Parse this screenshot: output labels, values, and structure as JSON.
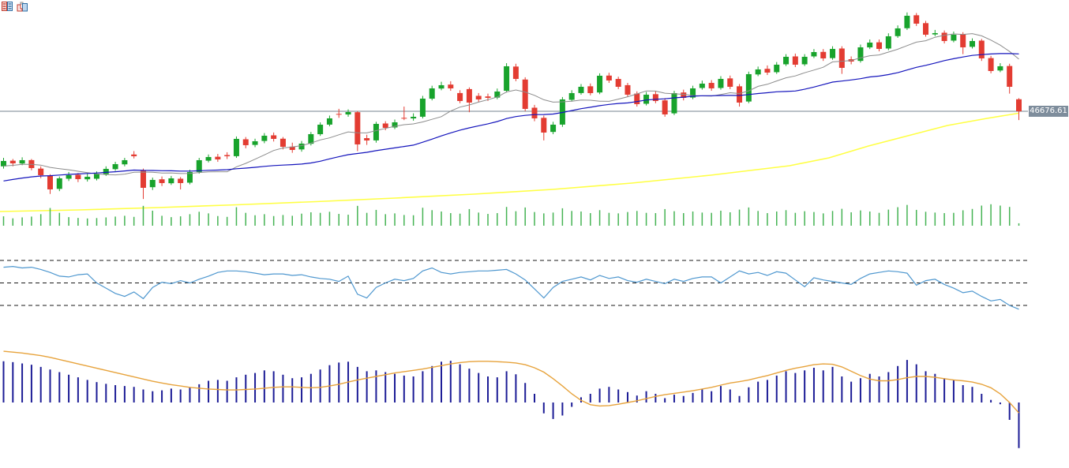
{
  "toolbar": {
    "icons": [
      {
        "name": "quote-list-icon"
      },
      {
        "name": "kline-chart-icon"
      }
    ]
  },
  "price_label": {
    "value": "46676.61",
    "bg": "#7e8d9c",
    "text_color": "#ffffff"
  },
  "chart_data": {
    "type": "candlestick",
    "panels": [
      "price",
      "volume",
      "oscillator",
      "macd"
    ],
    "last_price": 46676.61,
    "price_line_level": 46676.61,
    "colors": {
      "up": "#18a32c",
      "down": "#e33c32",
      "ma_short": "#8c8c8c",
      "ma_mid": "#1414bc",
      "ma_long": "#ffff44",
      "price_line": "#75838f",
      "volume": "#45b353",
      "oscillator": "#4e97cf",
      "oscillator_level": "#1a1a1a",
      "macd_bar": "#1c1c96",
      "macd_signal": "#e7a33c"
    },
    "ma_short_period": 10,
    "ma_mid_period": 30,
    "prior_closes": [
      44950,
      44985,
      45020,
      45055,
      45090,
      45125,
      45160,
      45195,
      45230,
      45265,
      45300,
      45335,
      45370,
      45405,
      45435,
      45465,
      45495,
      45525,
      45550,
      45575,
      45600,
      45620,
      45640,
      45660,
      45680,
      45700,
      45715,
      45730,
      45745,
      45760
    ],
    "candles": [
      [
        45700,
        45850,
        45660,
        45795
      ],
      [
        45800,
        45830,
        45700,
        45753
      ],
      [
        45750,
        45860,
        45720,
        45809
      ],
      [
        45810,
        45830,
        45630,
        45669
      ],
      [
        45660,
        45700,
        45490,
        45543
      ],
      [
        45530,
        45560,
        45210,
        45291
      ],
      [
        45300,
        45520,
        45260,
        45487
      ],
      [
        45480,
        45600,
        45440,
        45543
      ],
      [
        45550,
        45580,
        45420,
        45473
      ],
      [
        45470,
        45570,
        45430,
        45515
      ],
      [
        45480,
        45610,
        45450,
        45571
      ],
      [
        45560,
        45700,
        45530,
        45655
      ],
      [
        45650,
        45780,
        45620,
        45739
      ],
      [
        45735,
        45850,
        45700,
        45809
      ],
      [
        45910,
        45970,
        45840,
        45879
      ],
      [
        45620,
        45660,
        45120,
        45319
      ],
      [
        45330,
        45500,
        45280,
        45459
      ],
      [
        45470,
        45520,
        45350,
        45403
      ],
      [
        45400,
        45530,
        45370,
        45487
      ],
      [
        45480,
        45510,
        45290,
        45403
      ],
      [
        45410,
        45640,
        45380,
        45599
      ],
      [
        45600,
        45850,
        45570,
        45809
      ],
      [
        45800,
        45910,
        45770,
        45865
      ],
      [
        45870,
        45920,
        45780,
        45823
      ],
      [
        45900,
        45950,
        45830,
        45879
      ],
      [
        45880,
        46230,
        45850,
        46187
      ],
      [
        46180,
        46220,
        46020,
        46075
      ],
      [
        46080,
        46190,
        46040,
        46145
      ],
      [
        46150,
        46290,
        46110,
        46243
      ],
      [
        46250,
        46300,
        46140,
        46187
      ],
      [
        46190,
        46220,
        46000,
        46047
      ],
      [
        46050,
        46120,
        45940,
        45991
      ],
      [
        46000,
        46150,
        45960,
        46103
      ],
      [
        46100,
        46310,
        46070,
        46271
      ],
      [
        46270,
        46480,
        46240,
        46439
      ],
      [
        46440,
        46600,
        46410,
        46551
      ],
      [
        46630,
        46720,
        46560,
        46621
      ],
      [
        46620,
        46710,
        46580,
        46663
      ],
      [
        46660,
        46680,
        45970,
        46089
      ],
      [
        46200,
        46260,
        46080,
        46159
      ],
      [
        46160,
        46490,
        46120,
        46453
      ],
      [
        46460,
        46500,
        46340,
        46383
      ],
      [
        46390,
        46530,
        46360,
        46481
      ],
      [
        46560,
        46760,
        46520,
        46551
      ],
      [
        46550,
        46640,
        46510,
        46579
      ],
      [
        46580,
        46950,
        46550,
        46901
      ],
      [
        46900,
        47130,
        46870,
        47083
      ],
      [
        47080,
        47200,
        47050,
        47139
      ],
      [
        47150,
        47210,
        47040,
        47083
      ],
      [
        47000,
        47050,
        46820,
        46859
      ],
      [
        47070,
        47100,
        46660,
        46831
      ],
      [
        46950,
        47000,
        46840,
        46887
      ],
      [
        46940,
        46990,
        46860,
        46915
      ],
      [
        46920,
        47080,
        46890,
        47027
      ],
      [
        47040,
        47530,
        47010,
        47475
      ],
      [
        47470,
        47520,
        47210,
        47251
      ],
      [
        47240,
        47280,
        46680,
        46719
      ],
      [
        46740,
        46790,
        46500,
        46551
      ],
      [
        46560,
        46600,
        46160,
        46299
      ],
      [
        46310,
        46490,
        46270,
        46439
      ],
      [
        46440,
        46930,
        46400,
        46887
      ],
      [
        46880,
        47050,
        46850,
        46999
      ],
      [
        47000,
        47160,
        46970,
        47111
      ],
      [
        47120,
        47170,
        46960,
        46999
      ],
      [
        47010,
        47350,
        46980,
        47307
      ],
      [
        47310,
        47360,
        47180,
        47223
      ],
      [
        47250,
        47290,
        47070,
        47111
      ],
      [
        47140,
        47180,
        46930,
        46971
      ],
      [
        46990,
        47030,
        46760,
        46803
      ],
      [
        46810,
        47020,
        46780,
        46971
      ],
      [
        46980,
        47030,
        46820,
        46859
      ],
      [
        46870,
        46910,
        46580,
        46621
      ],
      [
        46640,
        47040,
        46610,
        46999
      ],
      [
        47010,
        47060,
        46870,
        46915
      ],
      [
        46920,
        47130,
        46890,
        47083
      ],
      [
        47090,
        47220,
        47060,
        47167
      ],
      [
        47180,
        47230,
        47040,
        47083
      ],
      [
        47090,
        47300,
        47060,
        47251
      ],
      [
        47260,
        47310,
        47070,
        47111
      ],
      [
        47120,
        47160,
        46760,
        46831
      ],
      [
        46850,
        47380,
        46820,
        47335
      ],
      [
        47330,
        47470,
        47300,
        47419
      ],
      [
        47430,
        47490,
        47320,
        47363
      ],
      [
        47370,
        47550,
        47340,
        47503
      ],
      [
        47510,
        47690,
        47480,
        47643
      ],
      [
        47650,
        47700,
        47460,
        47503
      ],
      [
        47510,
        47690,
        47480,
        47643
      ],
      [
        47650,
        47780,
        47620,
        47727
      ],
      [
        47730,
        47780,
        47570,
        47615
      ],
      [
        47620,
        47830,
        47590,
        47783
      ],
      [
        47790,
        47830,
        47340,
        47447
      ],
      [
        47600,
        47650,
        47510,
        47559
      ],
      [
        47570,
        47860,
        47540,
        47811
      ],
      [
        47810,
        47950,
        47780,
        47895
      ],
      [
        47900,
        47950,
        47740,
        47783
      ],
      [
        47790,
        48060,
        47760,
        48007
      ],
      [
        48010,
        48200,
        47980,
        48147
      ],
      [
        48150,
        48430,
        48120,
        48371
      ],
      [
        48380,
        48420,
        48190,
        48231
      ],
      [
        48240,
        48280,
        48000,
        48035
      ],
      [
        48040,
        48120,
        48010,
        48063
      ],
      [
        48070,
        48110,
        47880,
        47923
      ],
      [
        47930,
        48090,
        47900,
        48035
      ],
      [
        48040,
        48080,
        47690,
        47811
      ],
      [
        47820,
        47970,
        47790,
        47923
      ],
      [
        47930,
        47960,
        47570,
        47615
      ],
      [
        47620,
        47660,
        47350,
        47391
      ],
      [
        47400,
        47530,
        47370,
        47475
      ],
      [
        47480,
        47520,
        46990,
        47111
      ],
      [
        46890,
        46910,
        46520,
        46676.61
      ]
    ],
    "ma_long_line": [
      [
        0,
        44898
      ],
      [
        100,
        44926
      ],
      [
        200,
        44969
      ],
      [
        300,
        45018
      ],
      [
        400,
        45074
      ],
      [
        500,
        45137
      ],
      [
        600,
        45207
      ],
      [
        700,
        45291
      ],
      [
        800,
        45403
      ],
      [
        900,
        45543
      ],
      [
        1000,
        45711
      ],
      [
        1050,
        45850
      ],
      [
        1100,
        46060
      ],
      [
        1150,
        46243
      ],
      [
        1200,
        46425
      ],
      [
        1250,
        46551
      ],
      [
        1290,
        46642
      ]
    ],
    "volumes": [
      70,
      55,
      62,
      68,
      86,
      132,
      96,
      64,
      58,
      54,
      57,
      62,
      68,
      74,
      66,
      148,
      112,
      74,
      64,
      70,
      86,
      104,
      92,
      72,
      66,
      138,
      96,
      78,
      86,
      72,
      80,
      74,
      90,
      100,
      96,
      104,
      88,
      82,
      148,
      96,
      118,
      86,
      92,
      80,
      78,
      134,
      116,
      106,
      94,
      90,
      124,
      98,
      88,
      94,
      140,
      108,
      136,
      102,
      92,
      98,
      130,
      110,
      106,
      94,
      116,
      96,
      92,
      102,
      110,
      96,
      94,
      124,
      108,
      94,
      106,
      98,
      96,
      112,
      100,
      120,
      136,
      110,
      94,
      106,
      116,
      96,
      108,
      102,
      92,
      110,
      126,
      100,
      114,
      106,
      96,
      120,
      138,
      155,
      118,
      104,
      98,
      94,
      96,
      115,
      125,
      150,
      160,
      150,
      140,
      18
    ],
    "oscillator": {
      "levels": [
        80,
        50,
        20
      ],
      "values": [
        71,
        72,
        70,
        71,
        68,
        64,
        59,
        58,
        61,
        62,
        50,
        43,
        36,
        32,
        38,
        29,
        44,
        51,
        49,
        53,
        50,
        55,
        59,
        64,
        66,
        66,
        65,
        63,
        61,
        62,
        62,
        60,
        61,
        58,
        56,
        55,
        52,
        59,
        35,
        30,
        44,
        50,
        55,
        53,
        56,
        66,
        70,
        64,
        62,
        64,
        65,
        66,
        66,
        67,
        68,
        62,
        54,
        42,
        30,
        44,
        52,
        55,
        58,
        54,
        60,
        56,
        58,
        53,
        51,
        55,
        52,
        49,
        55,
        52,
        56,
        58,
        58,
        50,
        58,
        66,
        62,
        64,
        60,
        65,
        63,
        54,
        45,
        57,
        54,
        52,
        50,
        48,
        56,
        62,
        64,
        66,
        65,
        63,
        47,
        53,
        55,
        48,
        43,
        37,
        39,
        32,
        26,
        28,
        20,
        15
      ]
    },
    "macd": {
      "histogram": [
        95,
        93,
        90,
        87,
        82,
        76,
        70,
        64,
        58,
        52,
        47,
        43,
        40,
        38,
        36,
        30,
        26,
        28,
        32,
        30,
        35,
        42,
        50,
        52,
        50,
        58,
        64,
        68,
        74,
        72,
        64,
        56,
        58,
        66,
        76,
        86,
        92,
        94,
        82,
        72,
        74,
        70,
        66,
        62,
        60,
        72,
        84,
        94,
        96,
        88,
        78,
        68,
        60,
        58,
        72,
        65,
        45,
        20,
        -25,
        -38,
        -30,
        -10,
        12,
        20,
        32,
        36,
        30,
        24,
        16,
        26,
        20,
        10,
        18,
        15,
        22,
        30,
        26,
        38,
        30,
        15,
        35,
        48,
        52,
        62,
        72,
        68,
        74,
        80,
        74,
        82,
        60,
        48,
        56,
        66,
        60,
        70,
        84,
        98,
        88,
        72,
        66,
        56,
        52,
        40,
        36,
        20,
        6,
        -4,
        -40,
        -105
      ],
      "signal": [
        118,
        116,
        114,
        111,
        108,
        104,
        99,
        94,
        89,
        84,
        79,
        74,
        69,
        64,
        59,
        54,
        49,
        45,
        41,
        38,
        35,
        33,
        31,
        30,
        29,
        29,
        30,
        31,
        33,
        35,
        36,
        36,
        35,
        34,
        35,
        38,
        42,
        47,
        52,
        56,
        60,
        64,
        68,
        71,
        74,
        77,
        81,
        85,
        89,
        92,
        94,
        95,
        95,
        94,
        93,
        91,
        87,
        80,
        70,
        55,
        38,
        20,
        5,
        -5,
        -8,
        -7,
        -4,
        0,
        4,
        9,
        14,
        18,
        21,
        24,
        27,
        31,
        35,
        40,
        45,
        48,
        52,
        57,
        62,
        68,
        74,
        79,
        83,
        87,
        89,
        88,
        82,
        72,
        62,
        54,
        50,
        50,
        53,
        57,
        60,
        60,
        58,
        55,
        52,
        50,
        47,
        42,
        34,
        20,
        0,
        -24
      ]
    }
  }
}
